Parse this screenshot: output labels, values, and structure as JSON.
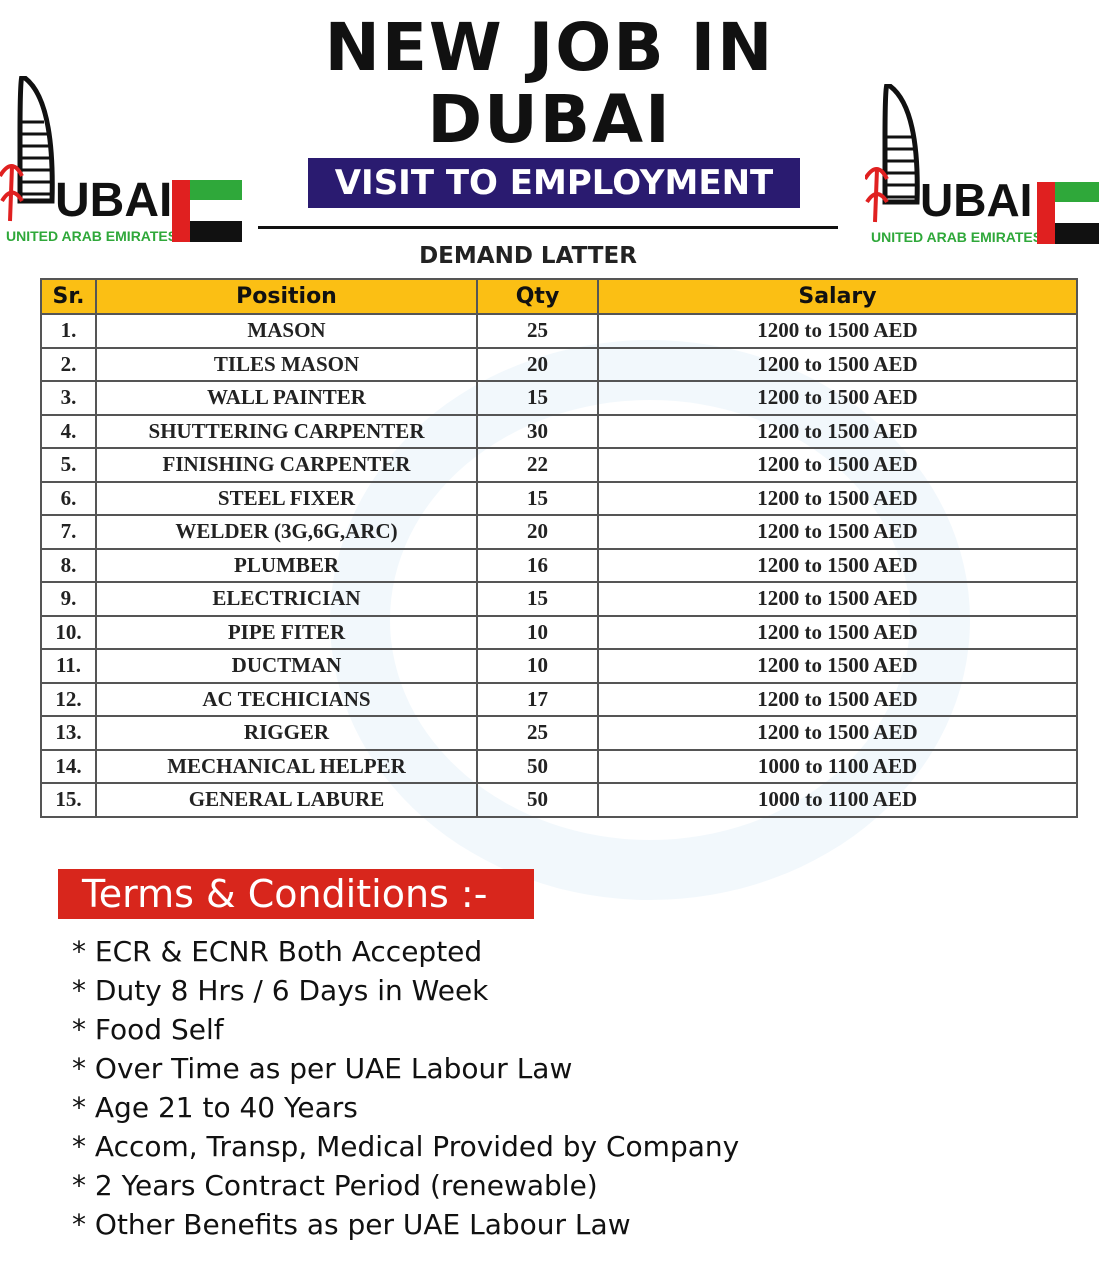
{
  "header": {
    "title_line1": "NEW JOB IN",
    "title_line2": "DUBAI",
    "banner": "VISIT TO EMPLOYMENT",
    "subtitle": "DEMAND LATTER"
  },
  "logo": {
    "text": "UBAI",
    "subtext": "UNITED ARAB EMIRATES",
    "colors": {
      "red": "#e02020",
      "green": "#2fa83a",
      "black": "#111111"
    }
  },
  "table": {
    "columns": [
      "Sr.",
      "Position",
      "Qty",
      "Salary"
    ],
    "rows": [
      [
        "1.",
        "MASON",
        "25",
        "1200 to 1500 AED"
      ],
      [
        "2.",
        "TILES MASON",
        "20",
        "1200 to 1500 AED"
      ],
      [
        "3.",
        "WALL PAINTER",
        "15",
        "1200 to 1500 AED"
      ],
      [
        "4.",
        "SHUTTERING CARPENTER",
        "30",
        "1200 to 1500 AED"
      ],
      [
        "5.",
        "FINISHING CARPENTER",
        "22",
        "1200 to 1500 AED"
      ],
      [
        "6.",
        "STEEL FIXER",
        "15",
        "1200 to 1500 AED"
      ],
      [
        "7.",
        "WELDER (3G,6G,ARC)",
        "20",
        "1200 to 1500 AED"
      ],
      [
        "8.",
        "PLUMBER",
        "16",
        "1200 to 1500 AED"
      ],
      [
        "9.",
        "ELECTRICIAN",
        "15",
        "1200 to 1500 AED"
      ],
      [
        "10.",
        "PIPE FITER",
        "10",
        "1200 to 1500 AED"
      ],
      [
        "11.",
        "DUCTMAN",
        "10",
        "1200 to 1500 AED"
      ],
      [
        "12.",
        "AC TECHICIANS",
        "17",
        "1200 to 1500 AED"
      ],
      [
        "13.",
        "RIGGER",
        "25",
        "1200 to 1500 AED"
      ],
      [
        "14.",
        "MECHANICAL HELPER",
        "50",
        "1000 to 1100 AED"
      ],
      [
        "15.",
        "GENERAL LABURE",
        "50",
        "1000 to 1100 AED"
      ]
    ]
  },
  "terms": {
    "heading": "Terms & Conditions :-",
    "items": [
      "* ECR & ECNR Both Accepted",
      "* Duty 8 Hrs / 6 Days in Week",
      "* Food Self",
      "* Over Time as per UAE Labour Law",
      "* Age 21 to 40 Years",
      "* Accom, Transp, Medical Provided by Company",
      "* 2 Years Contract Period (renewable)",
      "* Other Benefits as per UAE Labour Law"
    ]
  },
  "colors": {
    "banner_blue": "#2a1b70",
    "header_yellow": "#fbbf14",
    "terms_red": "#d8261c"
  }
}
